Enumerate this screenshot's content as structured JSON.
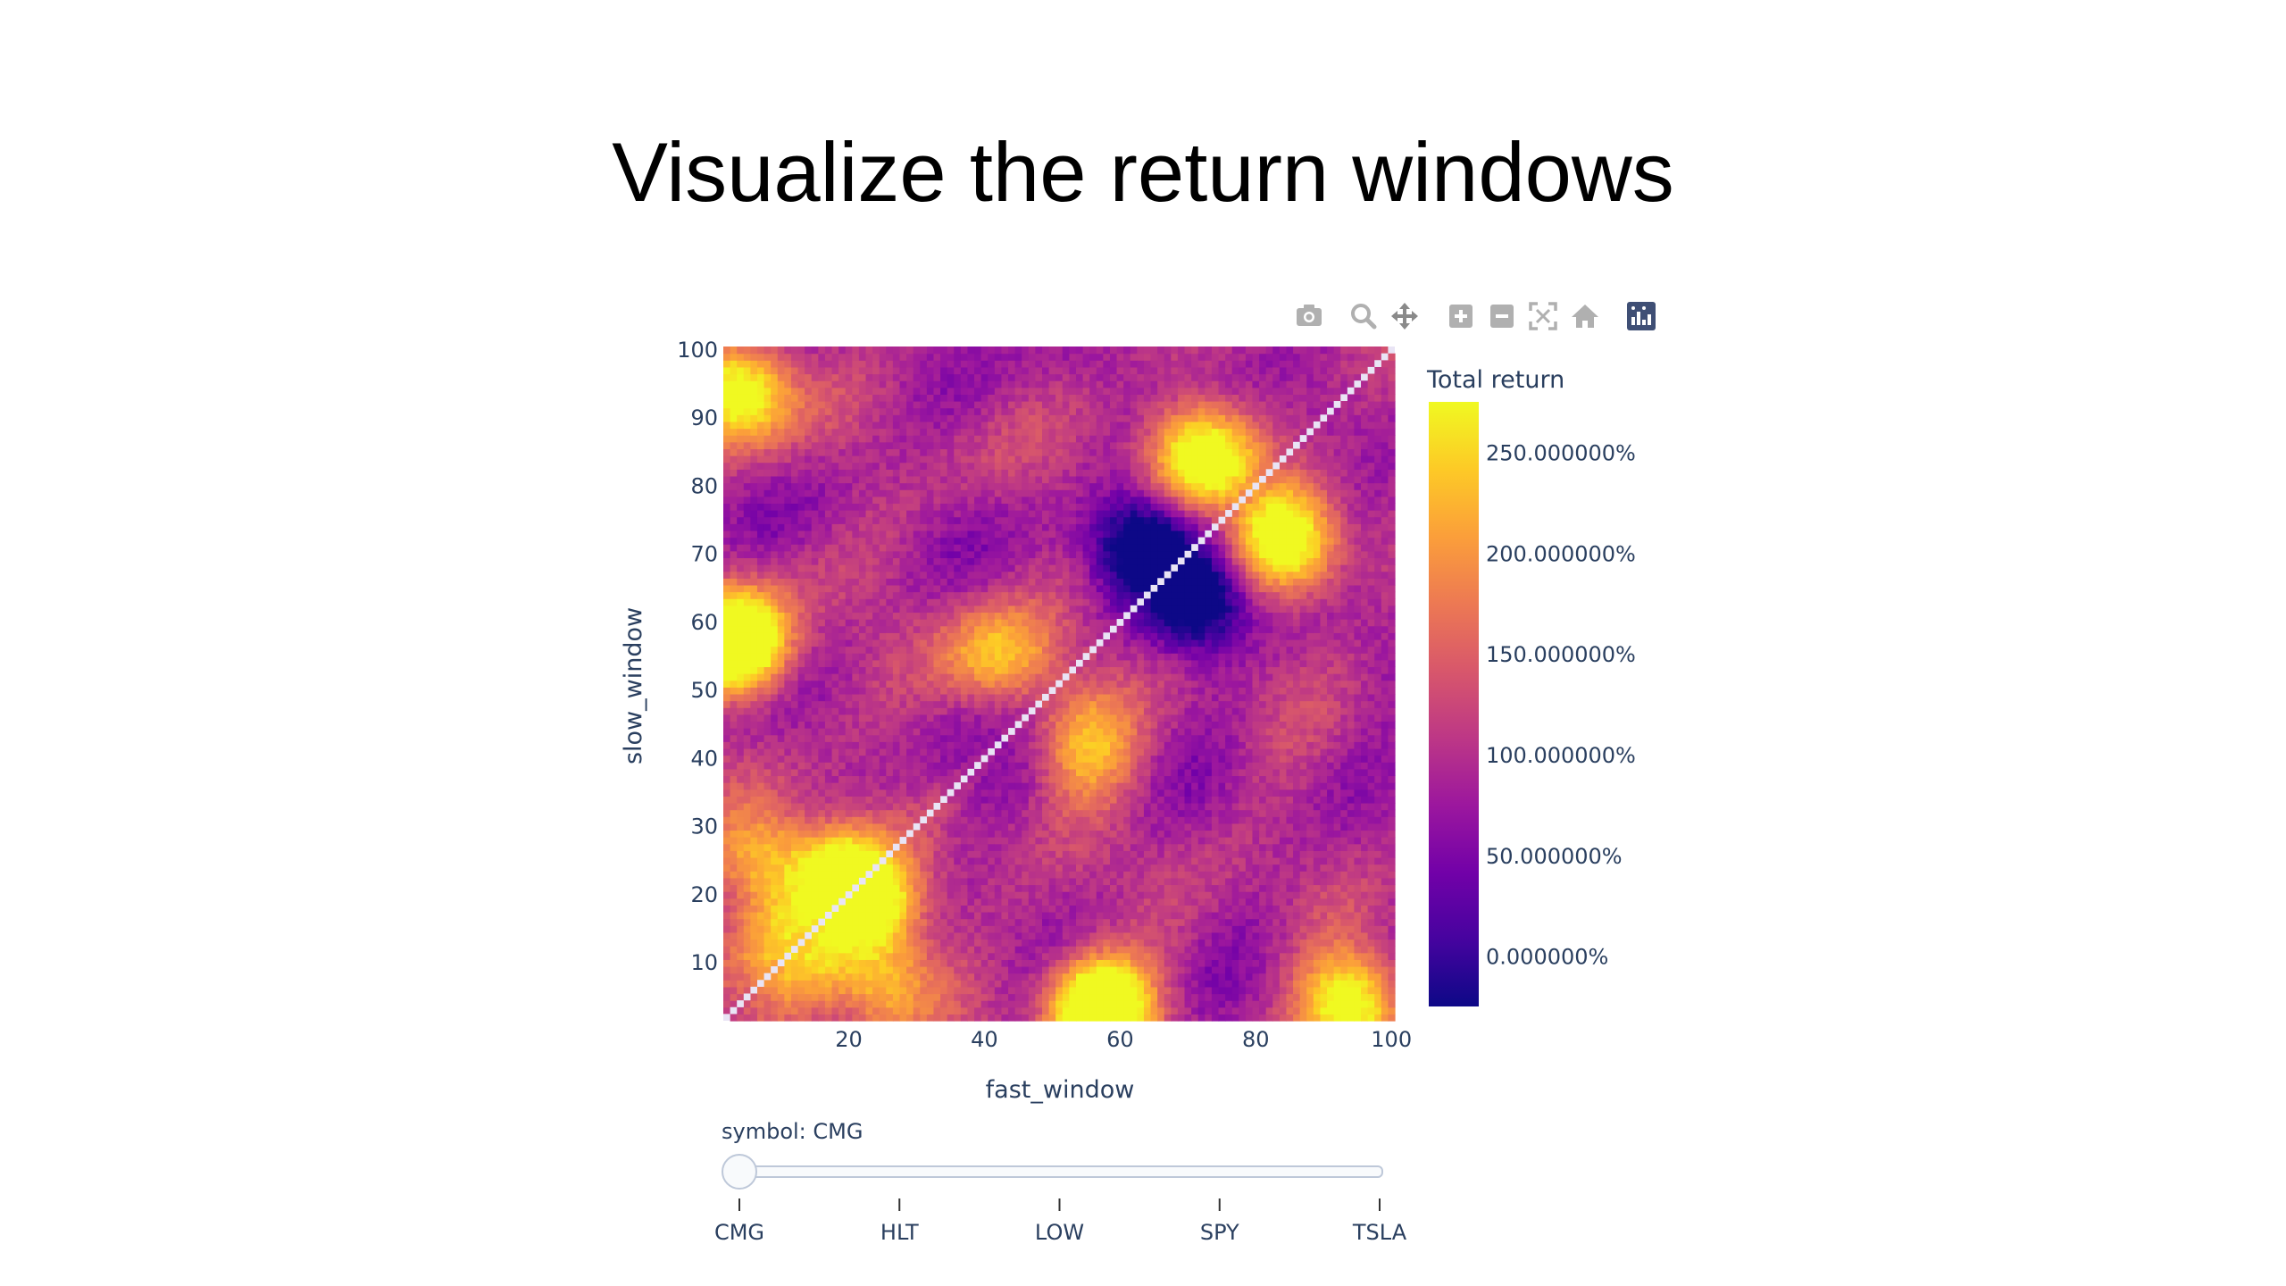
{
  "slide": {
    "title": "Visualize the return windows"
  },
  "modebar": {
    "buttons": [
      "camera-icon",
      "zoom-icon",
      "pan-icon",
      "zoom-in-icon",
      "zoom-out-icon",
      "autoscale-icon",
      "reset-axes-icon",
      "plotly-logo-icon"
    ]
  },
  "slider": {
    "label": "symbol: CMG",
    "options": [
      "CMG",
      "HLT",
      "LOW",
      "SPY",
      "TSLA"
    ],
    "selected_index": 0
  },
  "colors": {
    "diagonal": "#e9e4f5",
    "scale": [
      "#0d0887",
      "#46039f",
      "#7201a8",
      "#9c179e",
      "#bd3786",
      "#d8576b",
      "#ed7953",
      "#fb9f3a",
      "#fdca26",
      "#f0f921"
    ]
  },
  "chart_data": {
    "type": "heatmap",
    "title": "",
    "xlabel": "fast_window",
    "ylabel": "slow_window",
    "x_range": [
      2,
      100
    ],
    "y_range": [
      2,
      100
    ],
    "x_ticks": [
      "20",
      "40",
      "60",
      "80",
      "100"
    ],
    "y_ticks": [
      "10",
      "20",
      "30",
      "40",
      "50",
      "60",
      "70",
      "80",
      "90",
      "100"
    ],
    "colorbar": {
      "title": "Total return",
      "range": [
        -0.25,
        2.75
      ],
      "tick_values": [
        0,
        0.5,
        1,
        1.5,
        2,
        2.5
      ],
      "tick_labels": [
        "0.000000%",
        "50.000000%",
        "100.000000%",
        "150.000000%",
        "200.000000%",
        "250.000000%"
      ]
    },
    "diagonal": "NaN (fast_window == slow_window)",
    "symmetric": true,
    "hotspots": [
      {
        "fast": 4,
        "slow": 57,
        "value": 2.55
      },
      {
        "fast": 3,
        "slow": 95,
        "value": 2.1
      },
      {
        "fast": 7,
        "slow": 25,
        "value": 2.25
      },
      {
        "fast": 20,
        "slow": 22,
        "value": 2.4
      },
      {
        "fast": 23,
        "slow": 19,
        "value": 2.3
      },
      {
        "fast": 11,
        "slow": 13,
        "value": 2.15
      },
      {
        "fast": 57,
        "slow": 3,
        "value": 2.5
      },
      {
        "fast": 93,
        "slow": 4,
        "value": 2.1
      },
      {
        "fast": 70,
        "slow": 86,
        "value": 2.2
      },
      {
        "fast": 83,
        "slow": 74,
        "value": 2.1
      },
      {
        "fast": 40,
        "slow": 55,
        "value": 1.75
      },
      {
        "fast": 55,
        "slow": 45,
        "value": 1.7
      },
      {
        "fast": 66,
        "slow": 70,
        "value": -0.1
      },
      {
        "fast": 72,
        "slow": 62,
        "value": -0.05
      }
    ]
  }
}
